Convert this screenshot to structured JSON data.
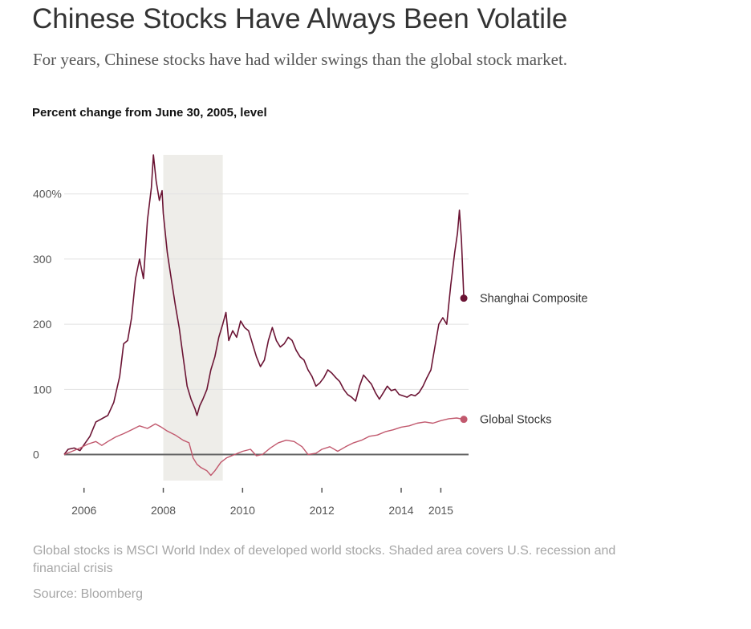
{
  "header": {
    "title": "Chinese Stocks Have Always Been Volatile",
    "subtitle": "For years, Chinese stocks have had wilder swings than the global stock market."
  },
  "footer": {
    "note": "Global stocks is MSCI World Index of developed world stocks. Shaded area covers U.S. recession and financial crisis",
    "source": "Source: Bloomberg"
  },
  "chart_data": {
    "type": "line",
    "title": "Chinese Stocks Have Always Been Volatile",
    "subtitle": "For years, Chinese stocks have had wilder swings than the global stock market.",
    "ylabel": "Percent change from June 30, 2005, level",
    "xlabel": "",
    "xlim": [
      2005.5,
      2015.7
    ],
    "ylim": [
      -40,
      460
    ],
    "y_ticks": [
      {
        "value": 0,
        "label": "0"
      },
      {
        "value": 100,
        "label": "100"
      },
      {
        "value": 200,
        "label": "200"
      },
      {
        "value": 300,
        "label": "300"
      },
      {
        "value": 400,
        "label": "400%"
      }
    ],
    "x_ticks": [
      {
        "value": 2006,
        "label": "2006"
      },
      {
        "value": 2008,
        "label": "2008"
      },
      {
        "value": 2010,
        "label": "2010"
      },
      {
        "value": 2012,
        "label": "2012"
      },
      {
        "value": 2014,
        "label": "2014"
      },
      {
        "value": 2015,
        "label": "2015"
      }
    ],
    "grid": true,
    "shaded_region": {
      "x_start": 2008.0,
      "x_end": 2009.5
    },
    "series": [
      {
        "name": "Shanghai Composite",
        "color": "#6b1434",
        "points": [
          [
            2005.5,
            0
          ],
          [
            2005.6,
            8
          ],
          [
            2005.75,
            10
          ],
          [
            2005.9,
            6
          ],
          [
            2006.0,
            15
          ],
          [
            2006.15,
            28
          ],
          [
            2006.3,
            50
          ],
          [
            2006.45,
            55
          ],
          [
            2006.6,
            60
          ],
          [
            2006.75,
            80
          ],
          [
            2006.9,
            120
          ],
          [
            2007.0,
            170
          ],
          [
            2007.1,
            175
          ],
          [
            2007.2,
            210
          ],
          [
            2007.3,
            270
          ],
          [
            2007.4,
            300
          ],
          [
            2007.5,
            270
          ],
          [
            2007.6,
            360
          ],
          [
            2007.7,
            410
          ],
          [
            2007.75,
            460
          ],
          [
            2007.82,
            420
          ],
          [
            2007.9,
            390
          ],
          [
            2007.97,
            405
          ],
          [
            2008.0,
            370
          ],
          [
            2008.1,
            310
          ],
          [
            2008.2,
            270
          ],
          [
            2008.3,
            230
          ],
          [
            2008.4,
            195
          ],
          [
            2008.5,
            150
          ],
          [
            2008.6,
            105
          ],
          [
            2008.7,
            85
          ],
          [
            2008.8,
            70
          ],
          [
            2008.85,
            60
          ],
          [
            2008.92,
            75
          ],
          [
            2009.0,
            85
          ],
          [
            2009.1,
            100
          ],
          [
            2009.2,
            130
          ],
          [
            2009.3,
            150
          ],
          [
            2009.4,
            180
          ],
          [
            2009.5,
            200
          ],
          [
            2009.58,
            218
          ],
          [
            2009.65,
            175
          ],
          [
            2009.75,
            190
          ],
          [
            2009.85,
            180
          ],
          [
            2009.95,
            205
          ],
          [
            2010.05,
            195
          ],
          [
            2010.15,
            190
          ],
          [
            2010.25,
            170
          ],
          [
            2010.35,
            150
          ],
          [
            2010.45,
            135
          ],
          [
            2010.55,
            145
          ],
          [
            2010.65,
            175
          ],
          [
            2010.75,
            195
          ],
          [
            2010.85,
            175
          ],
          [
            2010.95,
            165
          ],
          [
            2011.05,
            170
          ],
          [
            2011.15,
            180
          ],
          [
            2011.25,
            175
          ],
          [
            2011.35,
            160
          ],
          [
            2011.45,
            150
          ],
          [
            2011.55,
            145
          ],
          [
            2011.65,
            130
          ],
          [
            2011.75,
            120
          ],
          [
            2011.85,
            105
          ],
          [
            2011.95,
            110
          ],
          [
            2012.05,
            118
          ],
          [
            2012.15,
            130
          ],
          [
            2012.25,
            125
          ],
          [
            2012.35,
            118
          ],
          [
            2012.45,
            112
          ],
          [
            2012.55,
            100
          ],
          [
            2012.65,
            92
          ],
          [
            2012.75,
            88
          ],
          [
            2012.85,
            82
          ],
          [
            2012.95,
            105
          ],
          [
            2013.05,
            122
          ],
          [
            2013.15,
            115
          ],
          [
            2013.25,
            108
          ],
          [
            2013.35,
            95
          ],
          [
            2013.45,
            85
          ],
          [
            2013.55,
            95
          ],
          [
            2013.65,
            105
          ],
          [
            2013.75,
            98
          ],
          [
            2013.85,
            100
          ],
          [
            2013.95,
            92
          ],
          [
            2014.05,
            90
          ],
          [
            2014.15,
            88
          ],
          [
            2014.25,
            92
          ],
          [
            2014.35,
            90
          ],
          [
            2014.45,
            95
          ],
          [
            2014.55,
            105
          ],
          [
            2014.65,
            118
          ],
          [
            2014.75,
            130
          ],
          [
            2014.85,
            165
          ],
          [
            2014.95,
            200
          ],
          [
            2015.05,
            210
          ],
          [
            2015.15,
            200
          ],
          [
            2015.25,
            260
          ],
          [
            2015.35,
            310
          ],
          [
            2015.42,
            340
          ],
          [
            2015.47,
            375
          ],
          [
            2015.52,
            330
          ],
          [
            2015.58,
            240
          ]
        ]
      },
      {
        "name": "Global Stocks",
        "color": "#c1586d",
        "points": [
          [
            2005.5,
            0
          ],
          [
            2005.7,
            5
          ],
          [
            2005.9,
            10
          ],
          [
            2006.1,
            16
          ],
          [
            2006.3,
            20
          ],
          [
            2006.45,
            14
          ],
          [
            2006.6,
            20
          ],
          [
            2006.8,
            27
          ],
          [
            2007.0,
            32
          ],
          [
            2007.2,
            38
          ],
          [
            2007.4,
            44
          ],
          [
            2007.6,
            40
          ],
          [
            2007.8,
            47
          ],
          [
            2007.95,
            42
          ],
          [
            2008.1,
            36
          ],
          [
            2008.3,
            30
          ],
          [
            2008.5,
            22
          ],
          [
            2008.65,
            18
          ],
          [
            2008.75,
            -5
          ],
          [
            2008.85,
            -15
          ],
          [
            2008.95,
            -20
          ],
          [
            2009.1,
            -25
          ],
          [
            2009.2,
            -32
          ],
          [
            2009.3,
            -25
          ],
          [
            2009.45,
            -12
          ],
          [
            2009.6,
            -5
          ],
          [
            2009.8,
            0
          ],
          [
            2010.0,
            5
          ],
          [
            2010.2,
            8
          ],
          [
            2010.35,
            -2
          ],
          [
            2010.5,
            0
          ],
          [
            2010.7,
            10
          ],
          [
            2010.9,
            18
          ],
          [
            2011.1,
            22
          ],
          [
            2011.3,
            20
          ],
          [
            2011.5,
            12
          ],
          [
            2011.65,
            0
          ],
          [
            2011.85,
            2
          ],
          [
            2012.0,
            8
          ],
          [
            2012.2,
            12
          ],
          [
            2012.4,
            5
          ],
          [
            2012.6,
            12
          ],
          [
            2012.8,
            18
          ],
          [
            2013.0,
            22
          ],
          [
            2013.2,
            28
          ],
          [
            2013.4,
            30
          ],
          [
            2013.6,
            35
          ],
          [
            2013.8,
            38
          ],
          [
            2014.0,
            42
          ],
          [
            2014.2,
            44
          ],
          [
            2014.4,
            48
          ],
          [
            2014.6,
            50
          ],
          [
            2014.8,
            48
          ],
          [
            2015.0,
            52
          ],
          [
            2015.2,
            55
          ],
          [
            2015.4,
            56
          ],
          [
            2015.58,
            54
          ]
        ]
      }
    ]
  }
}
